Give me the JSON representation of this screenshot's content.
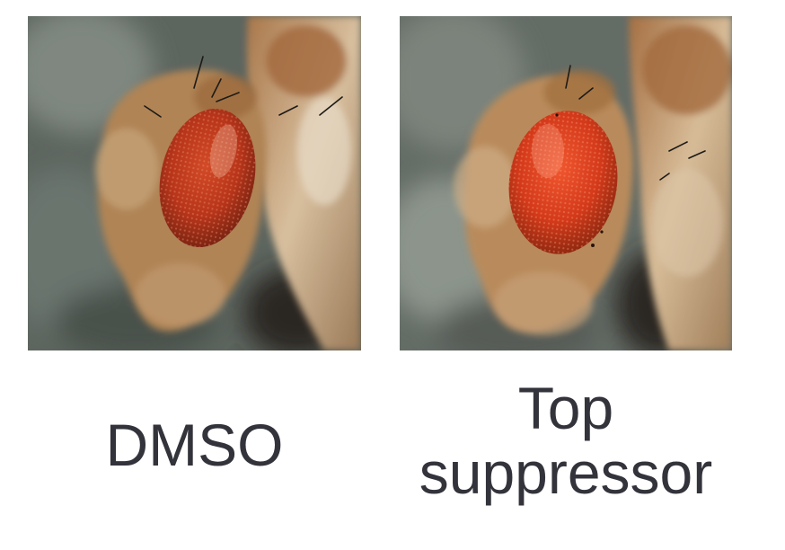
{
  "panels": [
    {
      "id": "dmso",
      "caption": "DMSO",
      "eye_color": "#c23b1c"
    },
    {
      "id": "top-suppressor",
      "caption_lines": [
        "Top",
        "suppressor"
      ],
      "eye_color": "#dd3a1a"
    }
  ],
  "colors": {
    "text": "#33333b",
    "background_blur": "#5e6660",
    "cuticle": "#b28758",
    "thorax": "#c9a47c"
  }
}
